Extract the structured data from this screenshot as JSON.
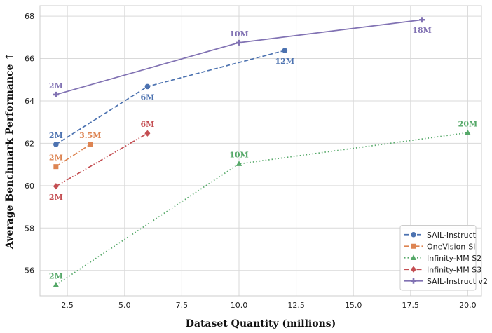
{
  "chart_data": {
    "type": "line",
    "xlabel": "Dataset Quantity (millions)",
    "ylabel": "Average Benchmark Performance ↑",
    "xlim": [
      1.3,
      20.6
    ],
    "ylim": [
      54.8,
      68.5
    ],
    "xticks": [
      2.5,
      5.0,
      7.5,
      10.0,
      12.5,
      15.0,
      17.5,
      20.0
    ],
    "xtick_labels": [
      "2.5",
      "5.0",
      "7.5",
      "10.0",
      "12.5",
      "15.0",
      "17.5",
      "20.0"
    ],
    "yticks": [
      56,
      58,
      60,
      62,
      64,
      66,
      68
    ],
    "grid": true,
    "legend_position": "bottom-right",
    "series": [
      {
        "name": "SAIL-Instruct",
        "color": "#4c72b0",
        "dash": "dashed",
        "marker": "circle",
        "x": [
          2,
          6,
          12
        ],
        "y": [
          61.95,
          64.68,
          66.38
        ],
        "labels": [
          "2M",
          "6M",
          "12M"
        ],
        "label_positions": [
          "above",
          "below",
          "below"
        ]
      },
      {
        "name": "OneVision-SI",
        "color": "#dd8452",
        "dash": "dashdot",
        "marker": "square",
        "x": [
          2,
          3.5
        ],
        "y": [
          60.9,
          61.95
        ],
        "labels": [
          "2M",
          "3.5M"
        ],
        "label_positions": [
          "above",
          "above"
        ]
      },
      {
        "name": "Infinity-MM S2",
        "color": "#55a868",
        "dash": "dotted",
        "marker": "triangle",
        "x": [
          2,
          10,
          20
        ],
        "y": [
          55.32,
          61.03,
          62.5
        ],
        "labels": [
          "2M",
          "10M",
          "20M"
        ],
        "label_positions": [
          "above",
          "above",
          "above"
        ]
      },
      {
        "name": "Infinity-MM S3",
        "color": "#c44e52",
        "dash": "dashdotdot",
        "marker": "diamond",
        "x": [
          2,
          6
        ],
        "y": [
          59.97,
          62.47
        ],
        "labels": [
          "2M",
          "6M"
        ],
        "label_positions": [
          "below",
          "above"
        ]
      },
      {
        "name": "SAIL-Instruct v2",
        "color": "#8172b3",
        "dash": "solid",
        "marker": "plus",
        "x": [
          2,
          10,
          18
        ],
        "y": [
          64.3,
          66.75,
          67.83
        ],
        "labels": [
          "2M",
          "10M",
          "18M"
        ],
        "label_positions": [
          "above",
          "above",
          "below"
        ]
      }
    ]
  }
}
